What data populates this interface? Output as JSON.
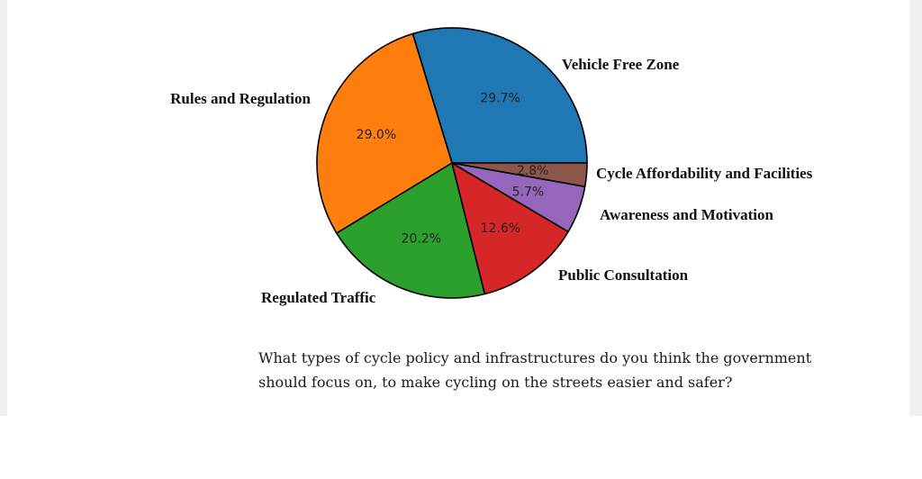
{
  "chart_data": {
    "type": "pie",
    "categories": [
      "Vehicle Free Zone",
      "Rules and Regulation",
      "Regulated Traffic",
      "Public Consultation",
      "Awareness and Motivation",
      "Cycle Affordability and Facilities"
    ],
    "values": [
      29.7,
      29.0,
      20.2,
      12.6,
      5.7,
      2.8
    ],
    "value_labels": [
      "29.7%",
      "29.0%",
      "20.2%",
      "12.6%",
      "5.7%",
      "2.8%"
    ],
    "colors": [
      "#1f77b4",
      "#ff7f0e",
      "#2ca02c",
      "#d62728",
      "#9467bd",
      "#8c564b"
    ],
    "start_angle_deg": 0,
    "direction": "counterclockwise"
  },
  "question": {
    "line1": "What types of cycle policy and infrastructures do you think the government",
    "line2": "should focus on, to make cycling on the streets easier and safer?"
  }
}
